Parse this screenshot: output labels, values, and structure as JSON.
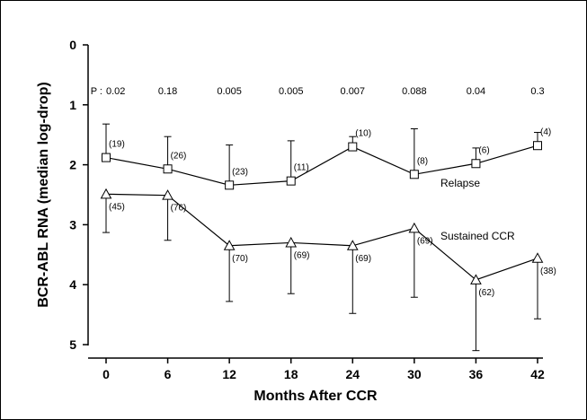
{
  "chart_data": {
    "type": "line",
    "xlabel": "Months After CCR",
    "ylabel": "BCR-ABL RNA (median log-drop)",
    "x": [
      0,
      6,
      12,
      18,
      24,
      30,
      36,
      42
    ],
    "xlim": [
      0,
      42
    ],
    "ylim": [
      0,
      5
    ],
    "y_inverted": true,
    "yticks": [
      0,
      1,
      2,
      3,
      4,
      5
    ],
    "grid": false,
    "p_prefix": "P : ",
    "p_values": [
      "0.02",
      "0.18",
      "0.005",
      "0.005",
      "0.007",
      "0.088",
      "0.04",
      "0.3"
    ],
    "series": [
      {
        "name": "Relapse",
        "marker": "square",
        "values": [
          1.88,
          2.07,
          2.34,
          2.27,
          1.7,
          2.16,
          1.98,
          1.68
        ],
        "error_upper": [
          1.32,
          1.53,
          1.67,
          1.6,
          1.53,
          1.4,
          1.72,
          1.46
        ],
        "n_labels": [
          "(19)",
          "(26)",
          "(23)",
          "(11)",
          "(10)",
          "(8)",
          "(6)",
          "(4)"
        ]
      },
      {
        "name": "Sustained CCR",
        "marker": "triangle",
        "values": [
          2.49,
          2.51,
          3.35,
          3.3,
          3.35,
          3.06,
          3.92,
          3.56
        ],
        "error_lower": [
          3.13,
          3.26,
          4.28,
          4.15,
          4.48,
          4.21,
          5.1,
          4.57
        ],
        "n_labels": [
          "(45)",
          "(76)",
          "(70)",
          "(69)",
          "(69)",
          "(69)",
          "(62)",
          "(38)"
        ]
      }
    ]
  }
}
